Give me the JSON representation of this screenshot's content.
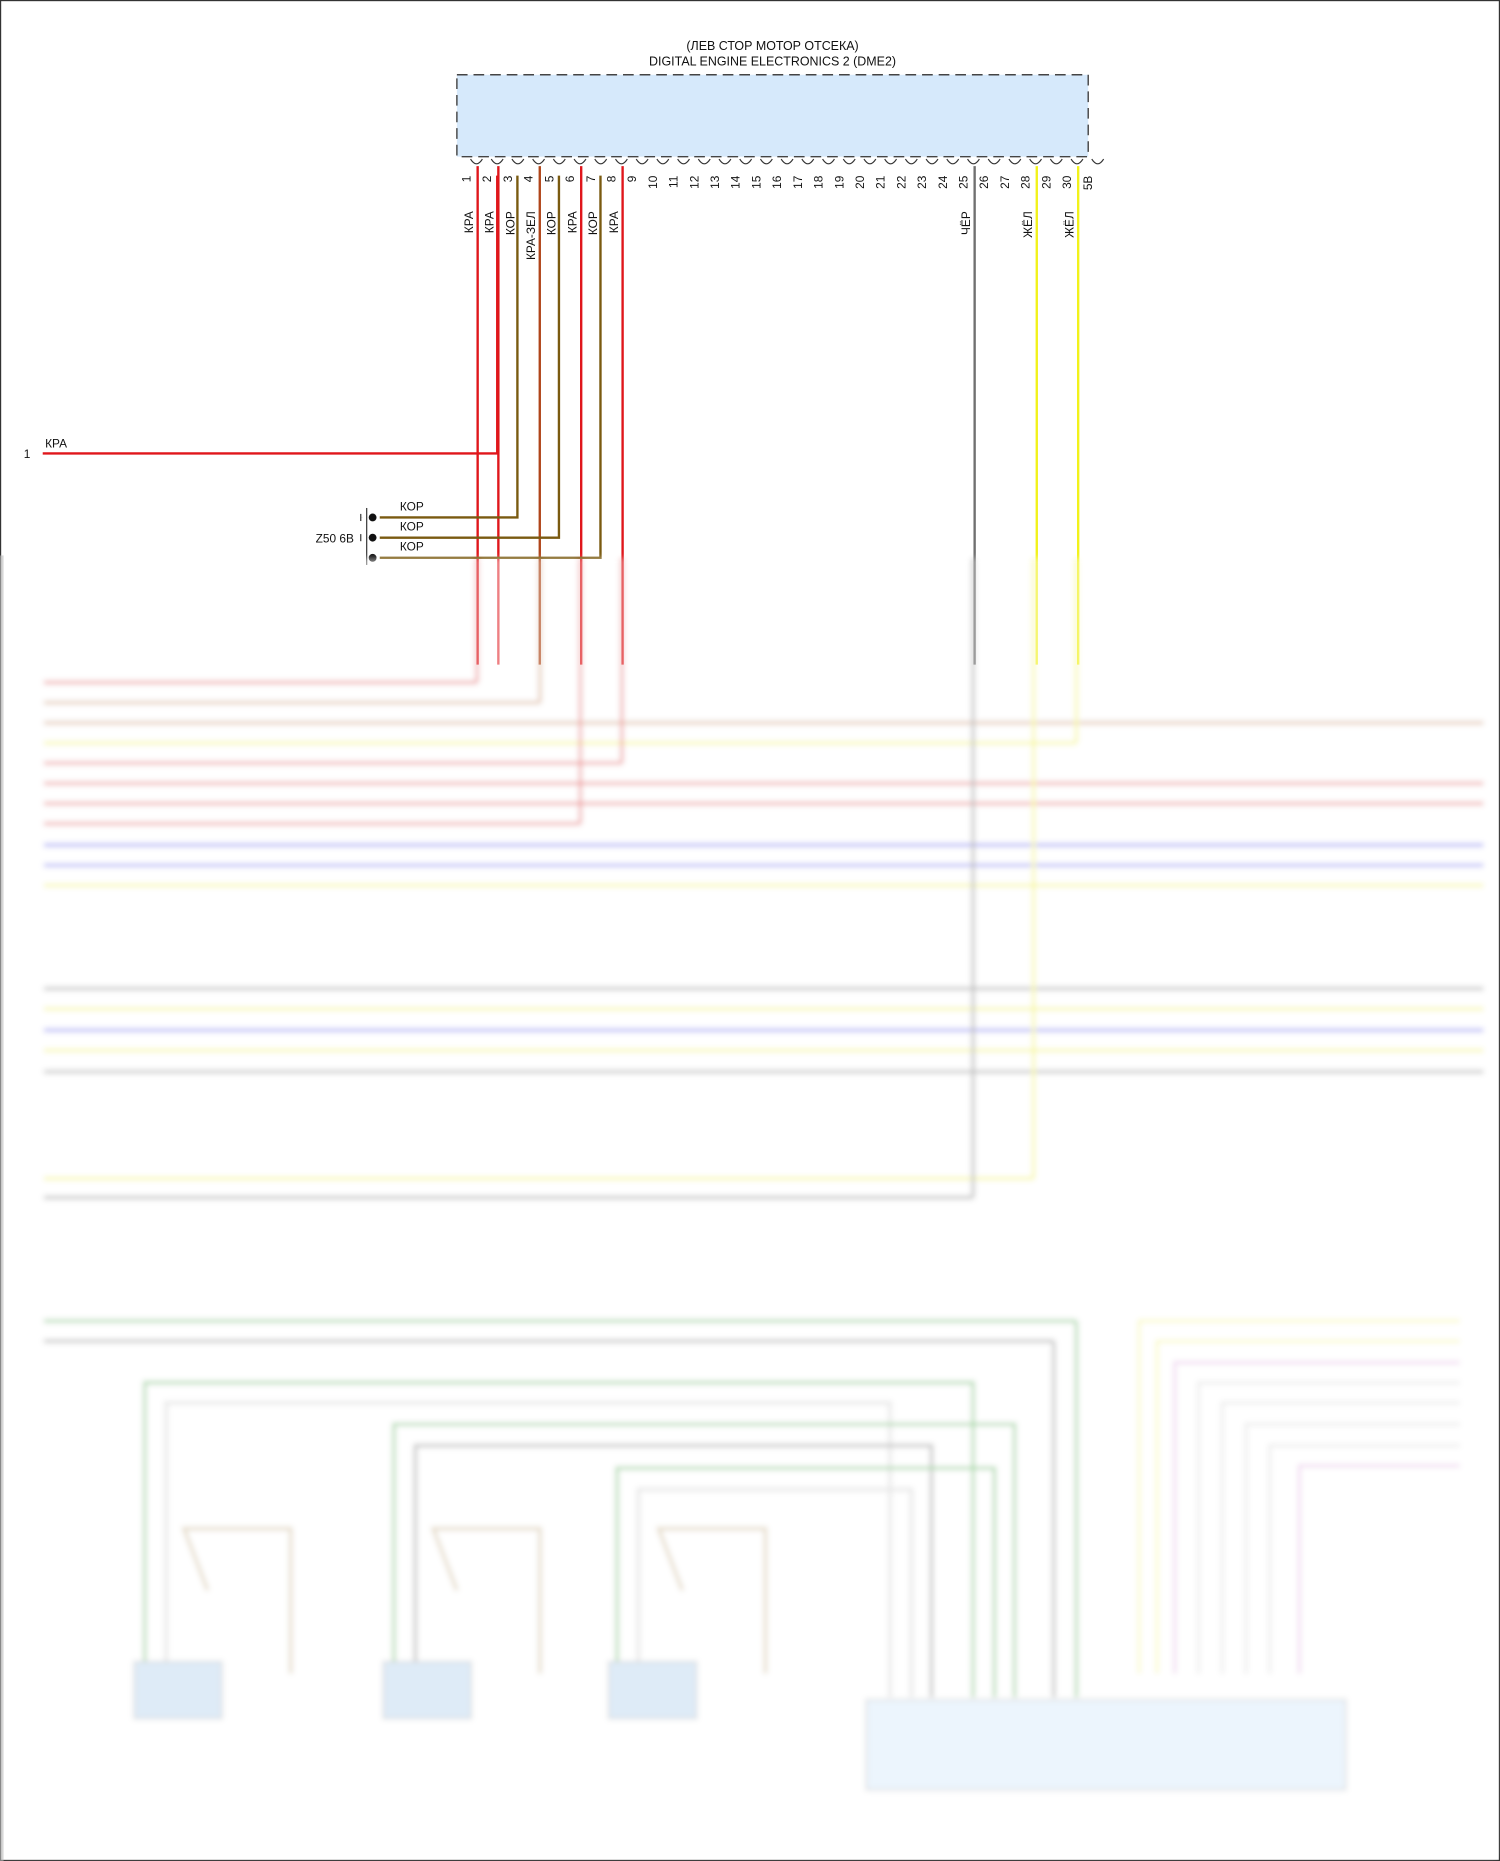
{
  "module": {
    "location": "(ЛЕВ СТОР МОТОР ОТСЕКА)",
    "name": "DIGITAL ENGINE ELECTRONICS 2 (DME2)",
    "fill": "#d6e9fb"
  },
  "pins": [
    "1",
    "2",
    "3",
    "4",
    "5",
    "6",
    "7",
    "8",
    "9",
    "10",
    "11",
    "12",
    "13",
    "14",
    "15",
    "16",
    "17",
    "18",
    "19",
    "20",
    "21",
    "22",
    "23",
    "24",
    "25",
    "26",
    "27",
    "28",
    "29",
    "30",
    "5В"
  ],
  "wires": [
    {
      "label": "КРА",
      "color": "#e0161b"
    },
    {
      "label": "КРА",
      "color": "#e0161b"
    },
    {
      "label": "КОР",
      "color": "#7a5a10"
    },
    {
      "label": "КРА-ЗЕЛ",
      "color": "#b0451a"
    },
    {
      "label": "КОР",
      "color": "#7a5a10"
    },
    {
      "label": "КРА",
      "color": "#e0161b"
    },
    {
      "label": "КОР",
      "color": "#7a5a10"
    },
    {
      "label": "КРА",
      "color": "#e0161b"
    },
    {
      "label": "ЧЁР",
      "color": "#707070"
    },
    {
      "label": "ЖЁЛ",
      "color": "#f2f21a"
    },
    {
      "label": "ЖЁЛ",
      "color": "#f2f21a"
    }
  ],
  "left_connector": {
    "pin": "1",
    "label": "КРА"
  },
  "ground": {
    "name": "Z50 6В",
    "labels": [
      "КОР",
      "КОР",
      "КОР"
    ]
  }
}
